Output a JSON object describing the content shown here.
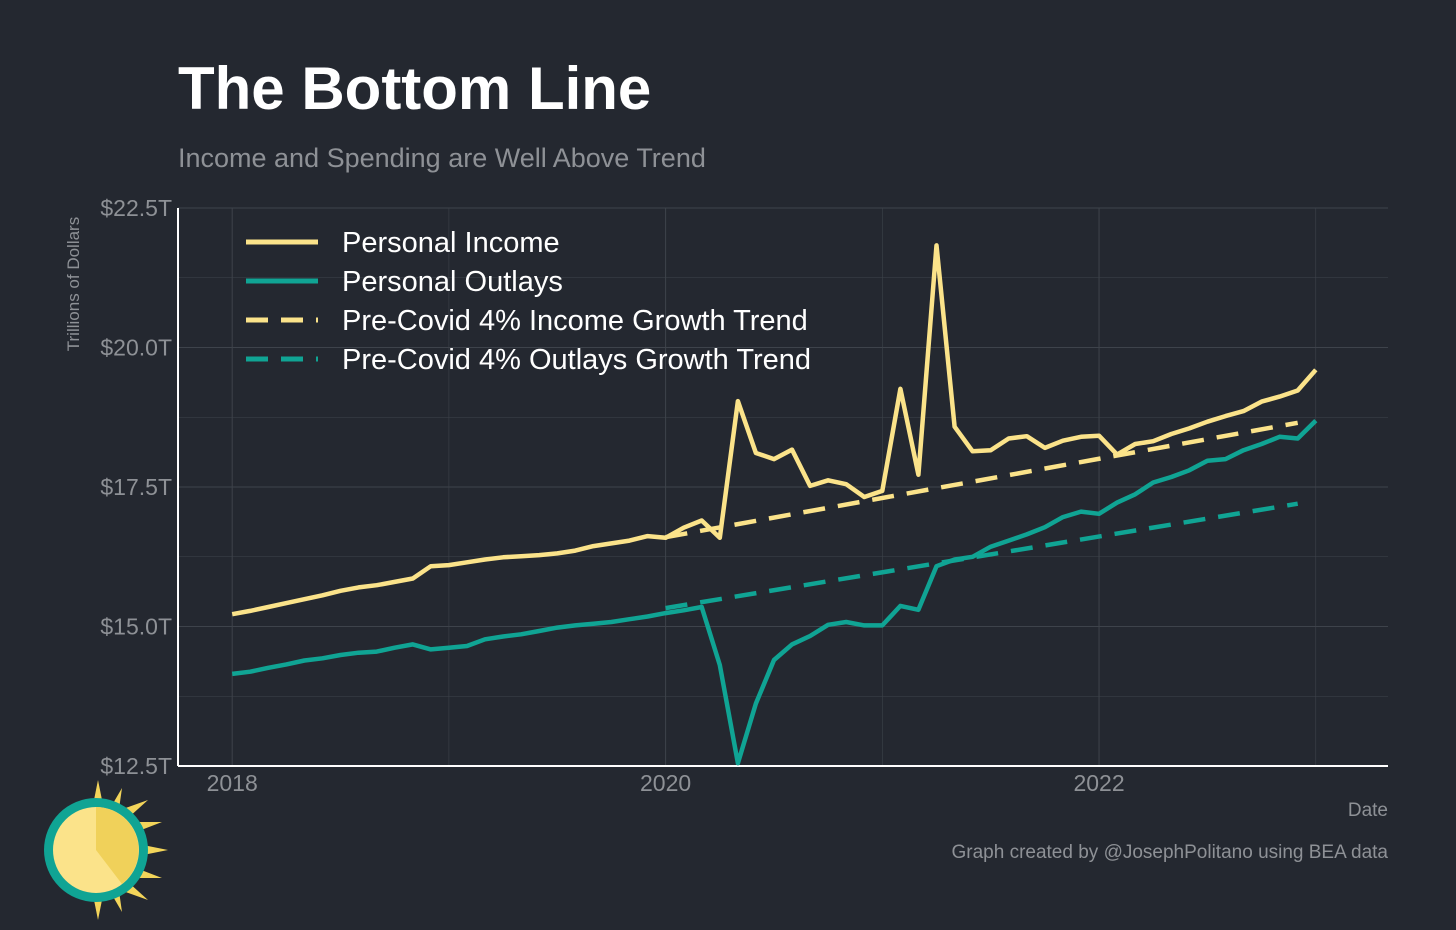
{
  "title": "The Bottom Line",
  "subtitle": "Income and Spending are Well Above Trend",
  "colors": {
    "background": "#242830",
    "income": "#fbe38a",
    "outlays": "#10a494",
    "grid": "#3e434b",
    "axis": "#ffffff",
    "text_muted": "#8e9196"
  },
  "chart_data": {
    "type": "line",
    "ylabel": "Trillions of Dollars",
    "xlabel": "Date",
    "caption": "Graph created by @JosephPolitano using BEA data",
    "ylim": [
      12.5,
      22.5
    ],
    "yticks": [
      12.5,
      15.0,
      17.5,
      20.0,
      22.5
    ],
    "ytick_labels": [
      "$12.5T",
      "$15.0T",
      "$17.5T",
      "$20.0T",
      "$22.5T"
    ],
    "xlim": [
      "2017-10-01",
      "2023-05-01"
    ],
    "xticks": [
      "2018-01-01",
      "2020-01-01",
      "2022-01-01"
    ],
    "xtick_labels": [
      "2018",
      "2020",
      "2022"
    ],
    "grid": true,
    "legend_position": "top-left",
    "series": [
      {
        "name": "Personal Income",
        "color": "#fbe38a",
        "style": "solid",
        "x": [
          "2018-01",
          "2018-02",
          "2018-03",
          "2018-04",
          "2018-05",
          "2018-06",
          "2018-07",
          "2018-08",
          "2018-09",
          "2018-10",
          "2018-11",
          "2018-12",
          "2019-01",
          "2019-02",
          "2019-03",
          "2019-04",
          "2019-05",
          "2019-06",
          "2019-07",
          "2019-08",
          "2019-09",
          "2019-10",
          "2019-11",
          "2019-12",
          "2020-01",
          "2020-02",
          "2020-03",
          "2020-04",
          "2020-05",
          "2020-06",
          "2020-07",
          "2020-08",
          "2020-09",
          "2020-10",
          "2020-11",
          "2020-12",
          "2021-01",
          "2021-02",
          "2021-03",
          "2021-04",
          "2021-05",
          "2021-06",
          "2021-07",
          "2021-08",
          "2021-09",
          "2021-10",
          "2021-11",
          "2021-12",
          "2022-01",
          "2022-02",
          "2022-03",
          "2022-04",
          "2022-05",
          "2022-06",
          "2022-07",
          "2022-08",
          "2022-09",
          "2022-10",
          "2022-11",
          "2022-12",
          "2023-01"
        ],
        "values": [
          15.22,
          15.28,
          15.35,
          15.42,
          15.49,
          15.56,
          15.64,
          15.7,
          15.74,
          15.8,
          15.86,
          16.08,
          16.1,
          16.15,
          16.2,
          16.24,
          16.26,
          16.28,
          16.31,
          16.36,
          16.44,
          16.49,
          16.54,
          16.62,
          16.59,
          16.77,
          16.9,
          16.59,
          19.04,
          18.11,
          18.0,
          18.17,
          17.52,
          17.62,
          17.55,
          17.32,
          17.43,
          19.26,
          17.72,
          21.83,
          18.58,
          18.14,
          18.16,
          18.37,
          18.41,
          18.2,
          18.33,
          18.4,
          18.42,
          18.08,
          18.27,
          18.32,
          18.45,
          18.55,
          18.67,
          18.77,
          18.86,
          19.03,
          19.12,
          19.23,
          19.6
        ]
      },
      {
        "name": "Personal Outlays",
        "color": "#10a494",
        "style": "solid",
        "x": [
          "2018-01",
          "2018-02",
          "2018-03",
          "2018-04",
          "2018-05",
          "2018-06",
          "2018-07",
          "2018-08",
          "2018-09",
          "2018-10",
          "2018-11",
          "2018-12",
          "2019-01",
          "2019-02",
          "2019-03",
          "2019-04",
          "2019-05",
          "2019-06",
          "2019-07",
          "2019-08",
          "2019-09",
          "2019-10",
          "2019-11",
          "2019-12",
          "2020-01",
          "2020-02",
          "2020-03",
          "2020-04",
          "2020-05",
          "2020-06",
          "2020-07",
          "2020-08",
          "2020-09",
          "2020-10",
          "2020-11",
          "2020-12",
          "2021-01",
          "2021-02",
          "2021-03",
          "2021-04",
          "2021-05",
          "2021-06",
          "2021-07",
          "2021-08",
          "2021-09",
          "2021-10",
          "2021-11",
          "2021-12",
          "2022-01",
          "2022-02",
          "2022-03",
          "2022-04",
          "2022-05",
          "2022-06",
          "2022-07",
          "2022-08",
          "2022-09",
          "2022-10",
          "2022-11",
          "2022-12",
          "2023-01"
        ],
        "values": [
          14.15,
          14.19,
          14.26,
          14.32,
          14.39,
          14.43,
          14.49,
          14.53,
          14.55,
          14.62,
          14.68,
          14.59,
          14.62,
          14.65,
          14.77,
          14.82,
          14.86,
          14.92,
          14.98,
          15.02,
          15.05,
          15.08,
          15.13,
          15.18,
          15.24,
          15.29,
          15.35,
          14.31,
          12.55,
          13.62,
          14.4,
          14.68,
          14.83,
          15.03,
          15.08,
          15.02,
          15.02,
          15.37,
          15.3,
          16.08,
          16.2,
          16.25,
          16.43,
          16.54,
          16.65,
          16.78,
          16.96,
          17.06,
          17.02,
          17.22,
          17.37,
          17.58,
          17.68,
          17.8,
          17.97,
          18.0,
          18.16,
          18.27,
          18.4,
          18.37,
          18.69
        ]
      },
      {
        "name": "Pre-Covid 4% Income Growth Trend",
        "color": "#fbe38a",
        "style": "dashed",
        "x": [
          "2020-01",
          "2022-12"
        ],
        "values": [
          16.6,
          18.65
        ]
      },
      {
        "name": "Pre-Covid 4% Outlays Growth Trend",
        "color": "#10a494",
        "style": "dashed",
        "x": [
          "2020-01",
          "2022-12"
        ],
        "values": [
          15.33,
          17.2
        ]
      }
    ]
  }
}
